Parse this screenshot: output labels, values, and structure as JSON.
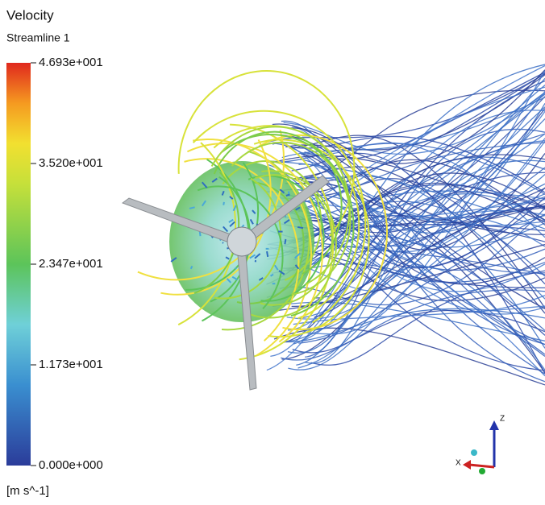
{
  "legend": {
    "title": "Velocity",
    "subtitle": "Streamline 1",
    "ticks": [
      "4.693e+001",
      "3.520e+001",
      "2.347e+001",
      "1.173e+001",
      "0.000e+000"
    ],
    "unit": "[m s^-1]"
  },
  "axes_triad": {
    "z": "Z",
    "x": "X"
  }
}
